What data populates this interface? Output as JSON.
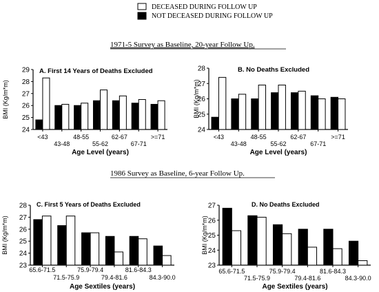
{
  "legend": {
    "items": [
      {
        "label": "DECEASED DURING FOLLOW UP",
        "fill": "#ffffff"
      },
      {
        "label": "NOT DECEASED DURING FOLLOW UP",
        "fill": "#000000"
      }
    ]
  },
  "sections": [
    {
      "heading": "1971-5 Survey as Baseline, 20-year Follow Up."
    },
    {
      "heading": "1986 Survey as Baseline, 6-year Follow Up."
    }
  ],
  "colors": {
    "deceased": "#ffffff",
    "not_deceased": "#000000",
    "stroke": "#000000"
  },
  "chart_data": [
    {
      "type": "bar",
      "title": "A. First 14 Years of Deaths Excluded",
      "xlabel": "Age Level (years)",
      "ylabel": "BMI (Kg/m*m)",
      "categories": [
        "<43",
        "43-48",
        "48-55",
        "55-62",
        "62-67",
        "67-71",
        ">=71"
      ],
      "ylim": [
        24,
        29
      ],
      "yticks": [
        24,
        25,
        26,
        27,
        28,
        29
      ],
      "series": [
        {
          "name": "NOT DECEASED DURING FOLLOW UP",
          "values": [
            24.8,
            26.0,
            26.0,
            26.4,
            26.4,
            26.2,
            26.1
          ]
        },
        {
          "name": "DECEASED DURING FOLLOW UP",
          "values": [
            28.3,
            26.1,
            26.2,
            27.3,
            26.8,
            26.5,
            26.4
          ]
        }
      ]
    },
    {
      "type": "bar",
      "title": "B. No Deaths Excluded",
      "xlabel": "Age Level (years)",
      "ylabel": "BMI (Kg/m*m)",
      "categories": [
        "<43",
        "43-48",
        "48-55",
        "55-62",
        "62-67",
        "67-71",
        ">=71"
      ],
      "ylim": [
        24,
        28
      ],
      "yticks": [
        24,
        25,
        26,
        27,
        28
      ],
      "series": [
        {
          "name": "NOT DECEASED DURING FOLLOW UP",
          "values": [
            24.8,
            26.0,
            26.0,
            26.4,
            26.4,
            26.2,
            26.1
          ]
        },
        {
          "name": "DECEASED DURING FOLLOW UP",
          "values": [
            27.4,
            26.3,
            26.9,
            26.9,
            26.5,
            26.0,
            26.0
          ]
        }
      ]
    },
    {
      "type": "bar",
      "title": "C. First 5 Years of Deaths Excluded",
      "xlabel": "Age Sextiles (years)",
      "ylabel": "BMI (Kg/m*m)",
      "categories": [
        "65.6-71.5",
        "71.5-75.9",
        "75.9-79.4",
        "79.4-81.6",
        "81.6-84.3",
        "84.3-90.0"
      ],
      "ylim": [
        23,
        28
      ],
      "yticks": [
        23,
        24,
        25,
        26,
        27,
        28
      ],
      "series": [
        {
          "name": "NOT DECEASED DURING FOLLOW UP",
          "values": [
            26.8,
            26.3,
            25.7,
            25.4,
            25.4,
            24.6
          ]
        },
        {
          "name": "DECEASED DURING FOLLOW UP",
          "values": [
            27.1,
            27.1,
            25.7,
            24.1,
            25.2,
            23.8
          ]
        }
      ]
    },
    {
      "type": "bar",
      "title": "D. No Deaths Excluded",
      "xlabel": "Age Sextiles (years)",
      "ylabel": "BMI (Kg/m*m)",
      "categories": [
        "65.6-71.5",
        "71.5-75.9",
        "75.9-79.4",
        "79.4-81.6",
        "81.6-84.3",
        "84.3-90.0"
      ],
      "ylim": [
        23,
        27
      ],
      "yticks": [
        23,
        24,
        25,
        26,
        27
      ],
      "series": [
        {
          "name": "NOT DECEASED DURING FOLLOW UP",
          "values": [
            26.8,
            26.3,
            25.7,
            25.4,
            25.4,
            24.6
          ]
        },
        {
          "name": "DECEASED DURING FOLLOW UP",
          "values": [
            25.3,
            26.2,
            25.1,
            24.2,
            24.1,
            23.3
          ]
        }
      ]
    }
  ]
}
